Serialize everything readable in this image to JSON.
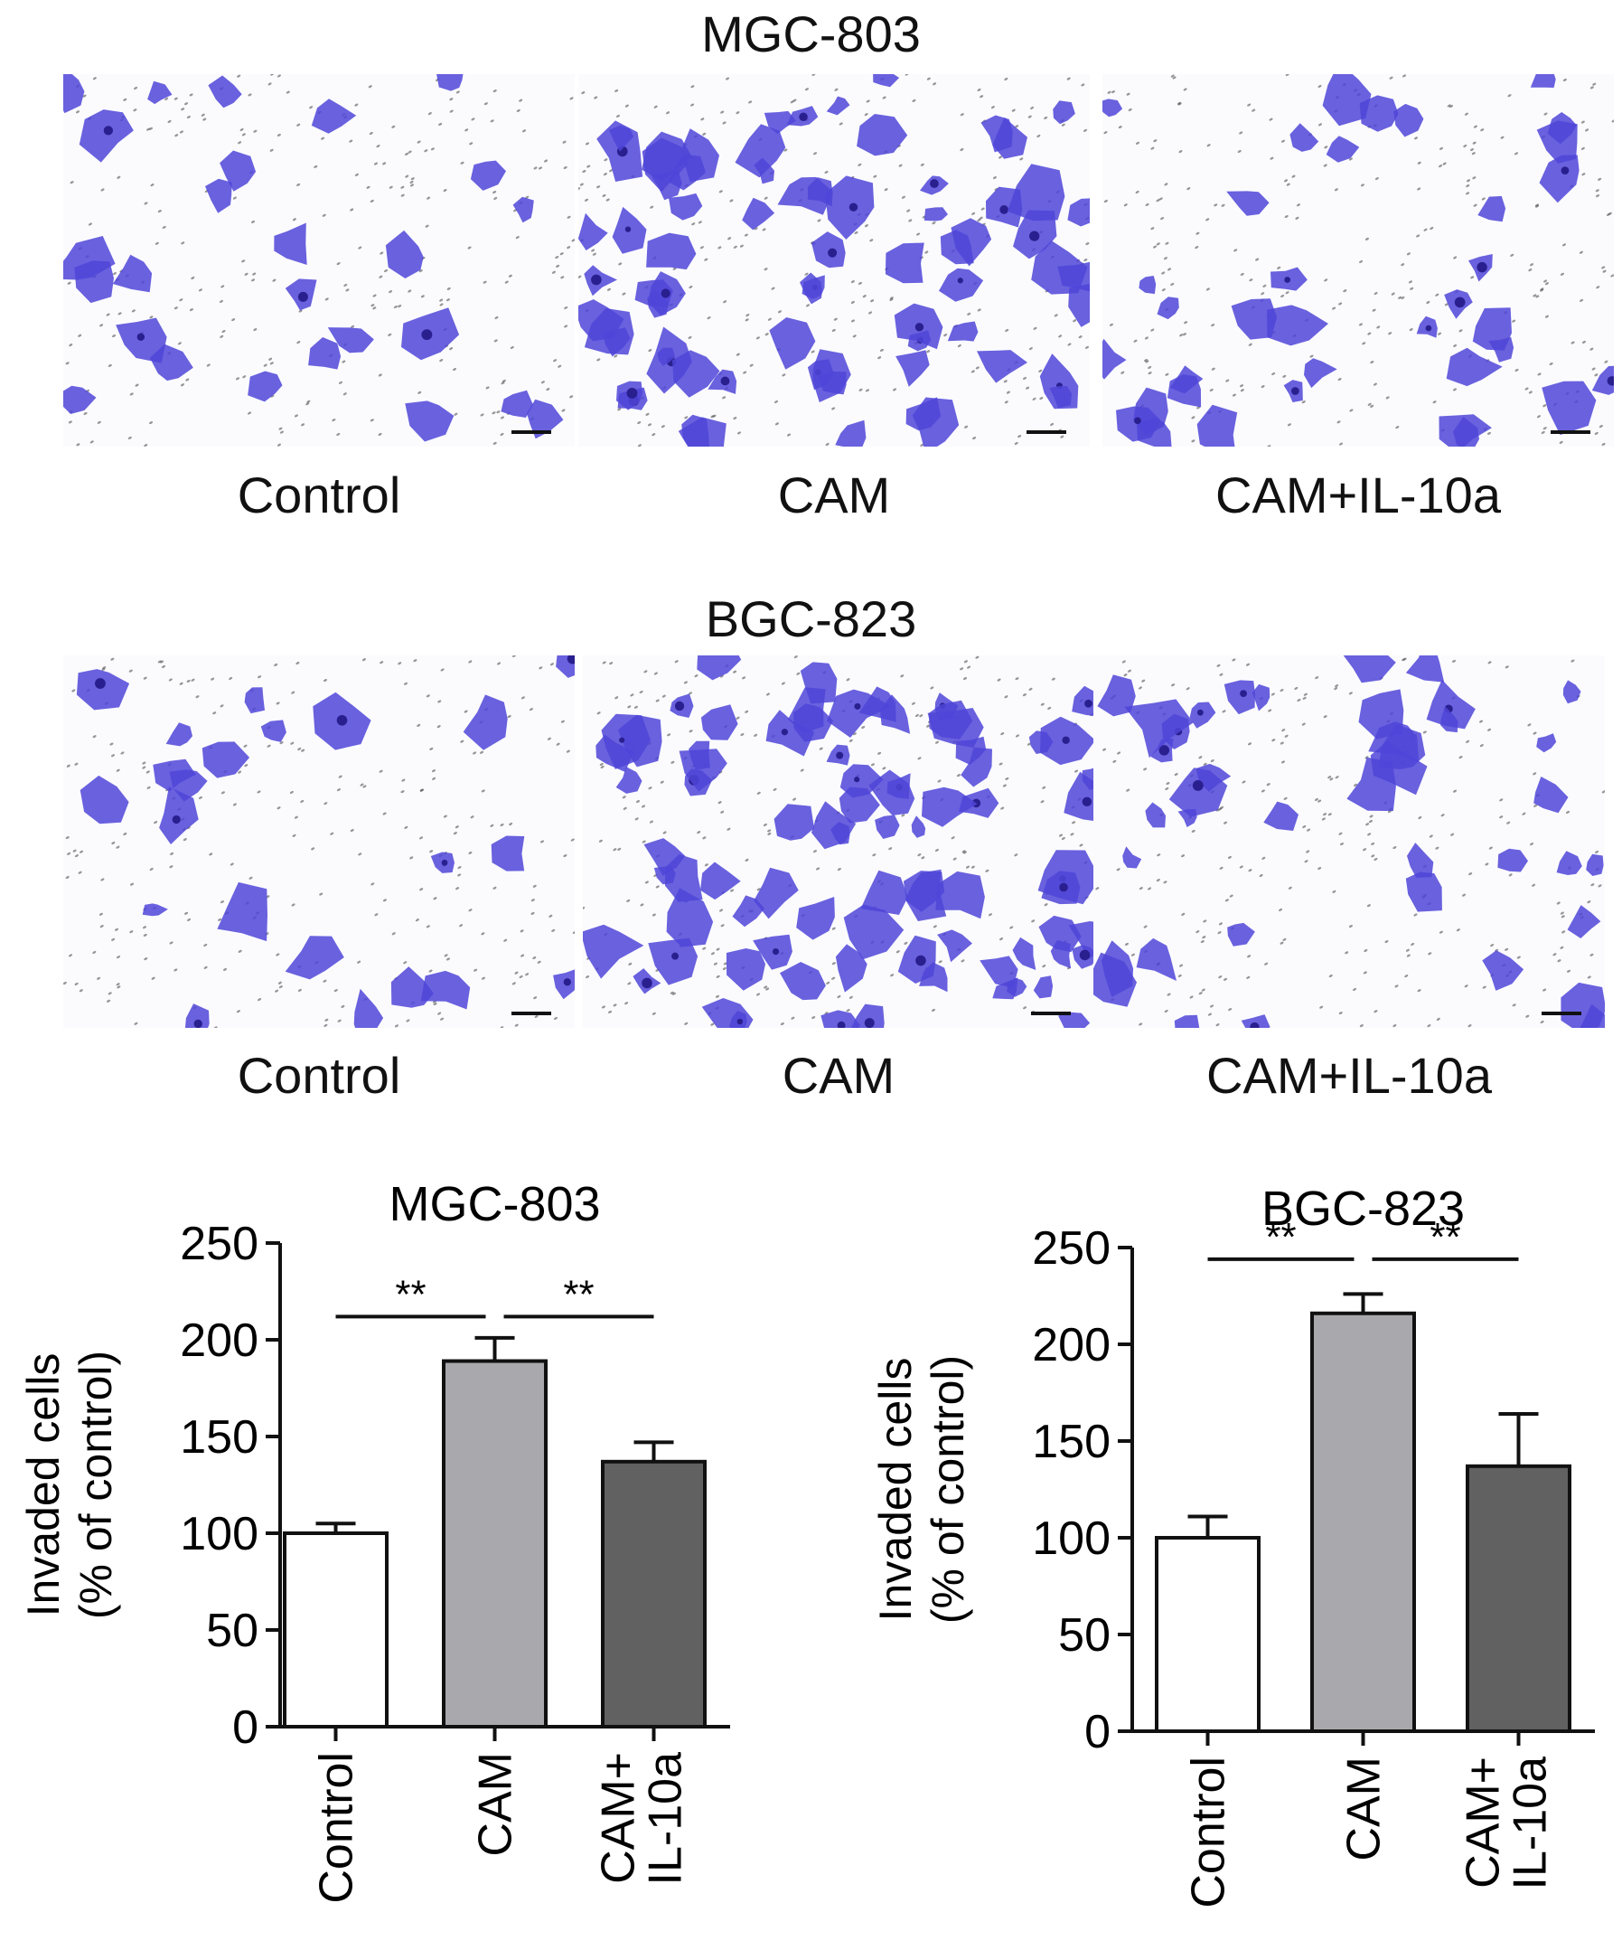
{
  "micrographs": {
    "rows": [
      {
        "title": "MGC-803",
        "labels": [
          "Control",
          "CAM",
          "CAM+IL-10a"
        ]
      },
      {
        "title": "BGC-823",
        "labels": [
          "Control",
          "CAM",
          "CAM+IL-10a"
        ]
      }
    ]
  },
  "colors": {
    "stain": "#4f45d8",
    "stain_dark": "#2a1f8f",
    "control_bar": "#ffffff",
    "cam_bar": "#a9a9ad",
    "cam_il10a_bar": "#616161"
  },
  "chart_data": [
    {
      "type": "bar",
      "title": "MGC-803",
      "ylabel": "Invaded cells\n(% of control)",
      "categories": [
        "Control",
        "CAM",
        "CAM+\nIL-10a"
      ],
      "values": [
        100,
        189,
        137
      ],
      "errors": [
        5,
        12,
        10
      ],
      "ylim": [
        0,
        250
      ],
      "yticks": [
        0,
        50,
        100,
        150,
        200,
        250
      ],
      "significance": [
        {
          "from": 0,
          "to": 1,
          "label": "**",
          "y": 212
        },
        {
          "from": 1,
          "to": 2,
          "label": "**",
          "y": 212
        }
      ]
    },
    {
      "type": "bar",
      "title": "BGC-823",
      "ylabel": "Invaded cells\n(% of control)",
      "categories": [
        "Control",
        "CAM",
        "CAM+\nIL-10a"
      ],
      "values": [
        100,
        216,
        137
      ],
      "errors": [
        11,
        10,
        27
      ],
      "ylim": [
        0,
        250
      ],
      "yticks": [
        0,
        50,
        100,
        150,
        200,
        250
      ],
      "significance": [
        {
          "from": 0,
          "to": 1,
          "label": "**",
          "y": 244
        },
        {
          "from": 1,
          "to": 2,
          "label": "**",
          "y": 244
        }
      ]
    }
  ]
}
